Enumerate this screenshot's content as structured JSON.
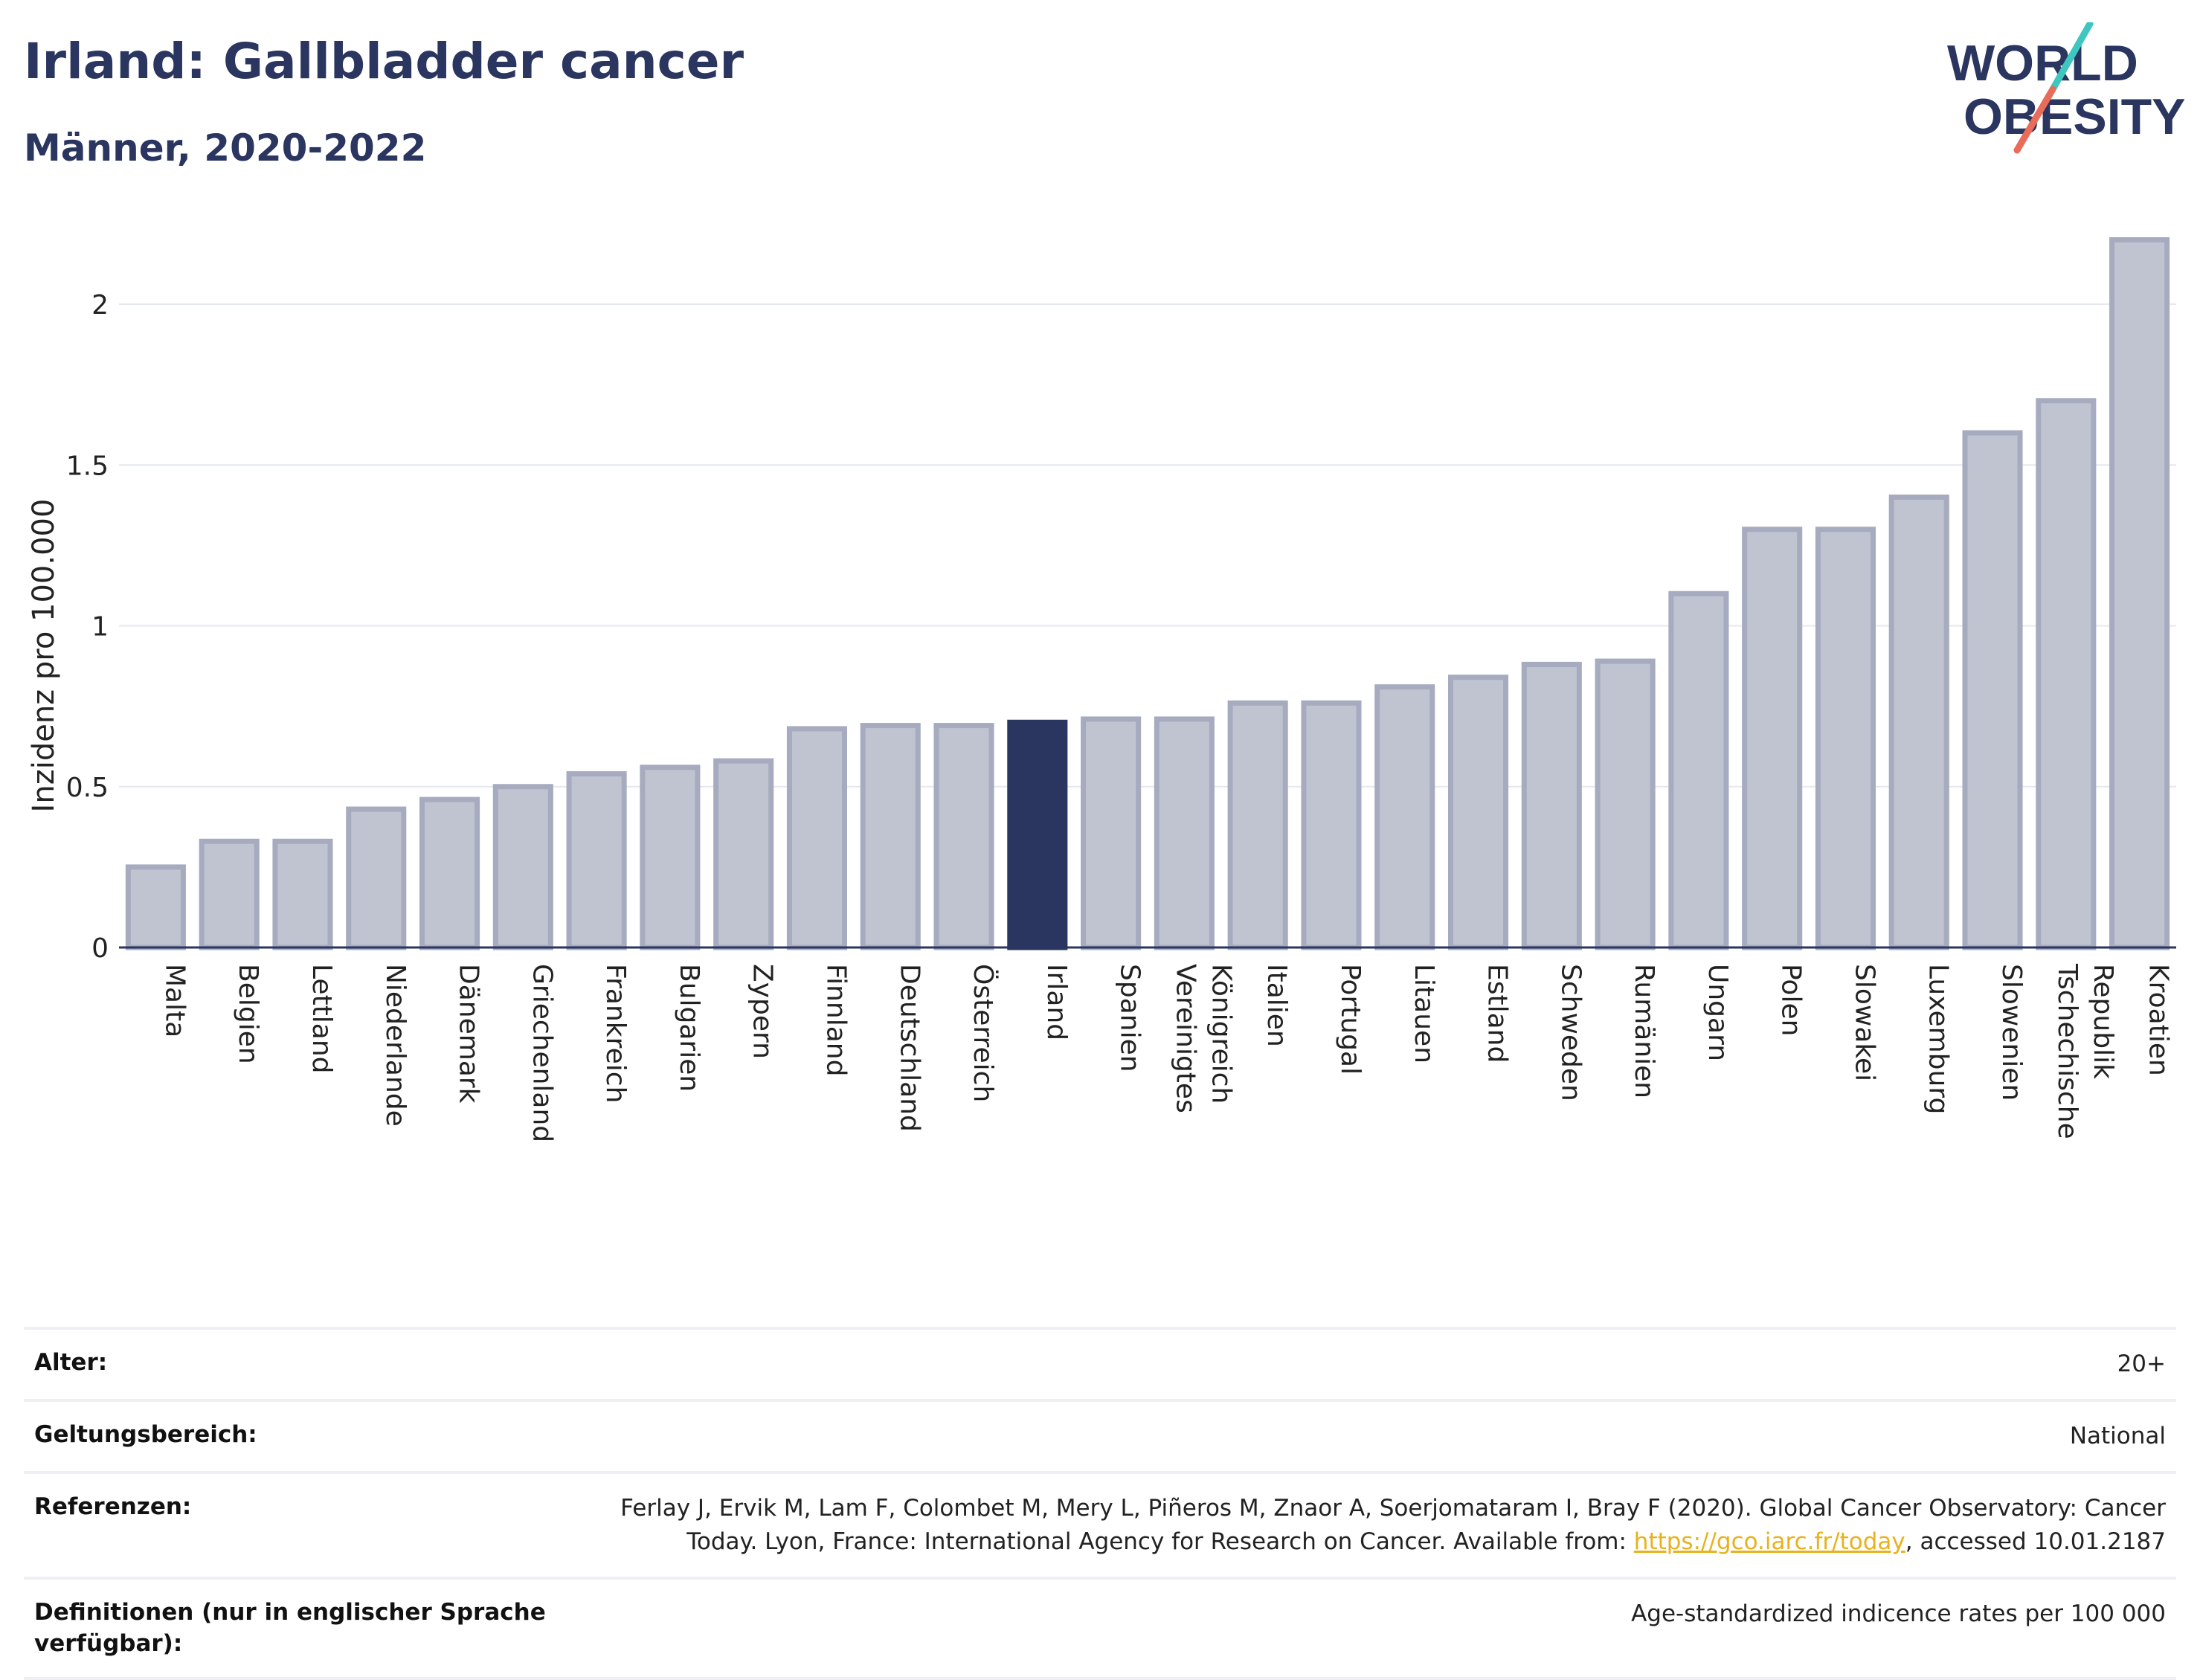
{
  "header": {
    "title": "Irland: Gallbladder cancer",
    "subtitle": "Männer, 2020-2022"
  },
  "logo": {
    "line1": "WORLD",
    "line2": "OBESITY"
  },
  "colors": {
    "primary": "#2a3560",
    "bar_fill": "#c0c3d0",
    "bar_stroke": "#a6abbf",
    "accent_teal": "#3ec6c0",
    "accent_red": "#e96b5a",
    "link": "#e8b21c"
  },
  "chart_data": {
    "type": "bar",
    "ylabel": "Inzidenz pro 100.000",
    "ylim": [
      0,
      2.2
    ],
    "yticks": [
      0,
      0.5,
      1,
      1.5,
      2
    ],
    "ytick_labels": [
      "0",
      "0.5",
      "1",
      "1.5",
      "2"
    ],
    "grid": true,
    "highlight": "Irland",
    "categories": [
      "Malta",
      "Belgien",
      "Lettland",
      "Niederlande",
      "Dänemark",
      "Griechenland",
      "Frankreich",
      "Bulgarien",
      "Zypern",
      "Finnland",
      "Deutschland",
      "Österreich",
      "Irland",
      "Spanien",
      "Vereinigtes Königreich",
      "Italien",
      "Portugal",
      "Litauen",
      "Estland",
      "Schweden",
      "Rumänien",
      "Ungarn",
      "Polen",
      "Slowakei",
      "Luxemburg",
      "Slowenien",
      "Tschechische Republik",
      "Kroatien"
    ],
    "category_lines": [
      [
        "Malta"
      ],
      [
        "Belgien"
      ],
      [
        "Lettland"
      ],
      [
        "Niederlande"
      ],
      [
        "Dänemark"
      ],
      [
        "Griechenland"
      ],
      [
        "Frankreich"
      ],
      [
        "Bulgarien"
      ],
      [
        "Zypern"
      ],
      [
        "Finnland"
      ],
      [
        "Deutschland"
      ],
      [
        "Österreich"
      ],
      [
        "Irland"
      ],
      [
        "Spanien"
      ],
      [
        "Vereinigtes",
        "Königreich"
      ],
      [
        "Italien"
      ],
      [
        "Portugal"
      ],
      [
        "Litauen"
      ],
      [
        "Estland"
      ],
      [
        "Schweden"
      ],
      [
        "Rumänien"
      ],
      [
        "Ungarn"
      ],
      [
        "Polen"
      ],
      [
        "Slowakei"
      ],
      [
        "Luxemburg"
      ],
      [
        "Slowenien"
      ],
      [
        "Tschechische",
        "Republik"
      ],
      [
        "Kroatien"
      ]
    ],
    "values": [
      0.25,
      0.33,
      0.33,
      0.43,
      0.46,
      0.5,
      0.54,
      0.56,
      0.58,
      0.68,
      0.69,
      0.69,
      0.7,
      0.71,
      0.71,
      0.76,
      0.76,
      0.81,
      0.84,
      0.88,
      0.89,
      1.1,
      1.3,
      1.3,
      1.4,
      1.6,
      1.7,
      2.2
    ]
  },
  "meta": {
    "age_label": "Alter:",
    "age_value": "20+",
    "scope_label": "Geltungsbereich:",
    "scope_value": "National",
    "ref_label": "Referenzen:",
    "ref_text_1": "Ferlay J, Ervik M, Lam F, Colombet M, Mery L, Piñeros M, Znaor A, Soerjomataram I, Bray F (2020). Global Cancer Observatory: Cancer Today. Lyon, France: International Agency for Research on Cancer. Available from: ",
    "ref_link": "https://gco.iarc.fr/today",
    "ref_text_2": ", accessed 10.01.2187",
    "def_label": "Definitionen (nur in englischer Sprache verfügbar):",
    "def_value": "Age-standardized indicence rates per 100 000"
  }
}
